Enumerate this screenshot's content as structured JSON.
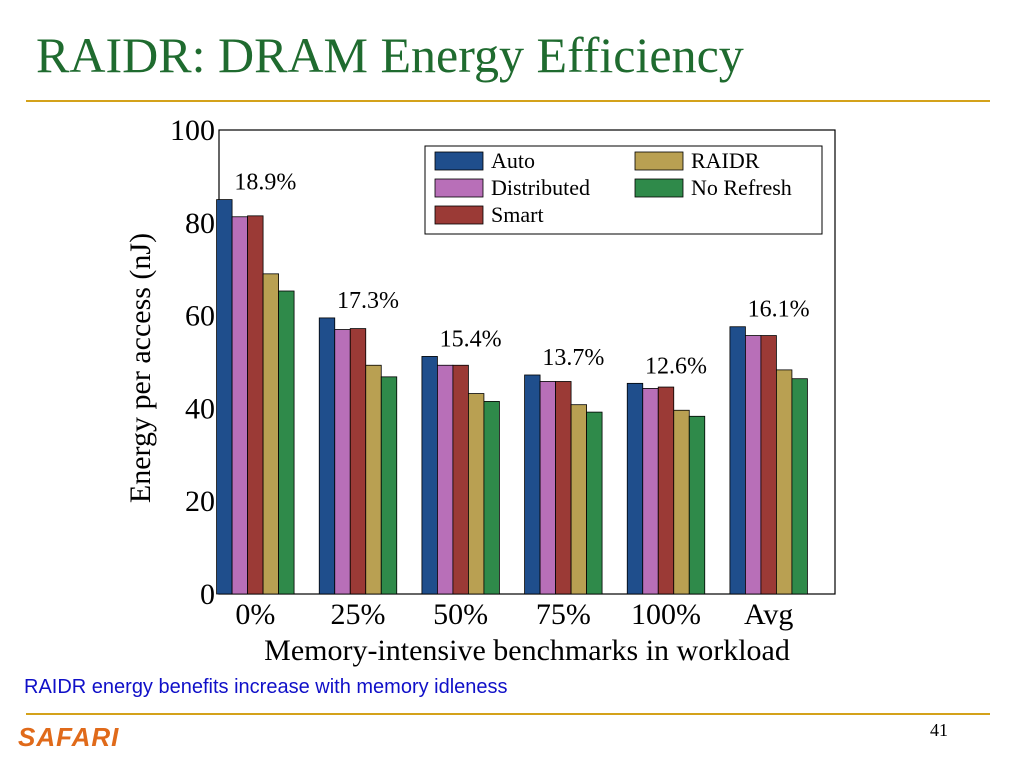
{
  "slide": {
    "title": "RAIDR: DRAM Energy Efficiency",
    "caption": "RAIDR energy benefits increase with memory idleness",
    "logo": "SAFARI",
    "page_number": "41",
    "title_color": "#1f6b2f",
    "rule_color": "#d4a21a",
    "caption_color": "#1010c8",
    "logo_color": "#e06a1a"
  },
  "chart_data": {
    "type": "bar",
    "title": "",
    "xlabel": "Memory-intensive benchmarks in workload",
    "ylabel": "Energy per access (nJ)",
    "ylim": [
      0,
      100
    ],
    "yticks": [
      0,
      20,
      40,
      60,
      80,
      100
    ],
    "categories": [
      "0%",
      "25%",
      "50%",
      "75%",
      "100%",
      "Avg"
    ],
    "series": [
      {
        "name": "Auto",
        "color": "#1f4e8c",
        "values": [
          85,
          59.5,
          51.2,
          47.2,
          45.4,
          57.6
        ]
      },
      {
        "name": "Distributed",
        "color": "#b86fb8",
        "values": [
          81.3,
          57.0,
          49.3,
          45.8,
          44.3,
          55.7
        ]
      },
      {
        "name": "Smart",
        "color": "#9b3a36",
        "values": [
          81.5,
          57.2,
          49.3,
          45.8,
          44.6,
          55.7
        ]
      },
      {
        "name": "RAIDR",
        "color": "#b9a052",
        "values": [
          69,
          49.3,
          43.2,
          40.8,
          39.6,
          48.3
        ]
      },
      {
        "name": "No Refresh",
        "color": "#2f8a4a",
        "values": [
          65.3,
          46.8,
          41.5,
          39.2,
          38.3,
          46.4
        ]
      }
    ],
    "annotations": [
      "18.9%",
      "17.3%",
      "15.4%",
      "13.7%",
      "12.6%",
      "16.1%"
    ],
    "legend_position": "top-right",
    "grid": false
  }
}
